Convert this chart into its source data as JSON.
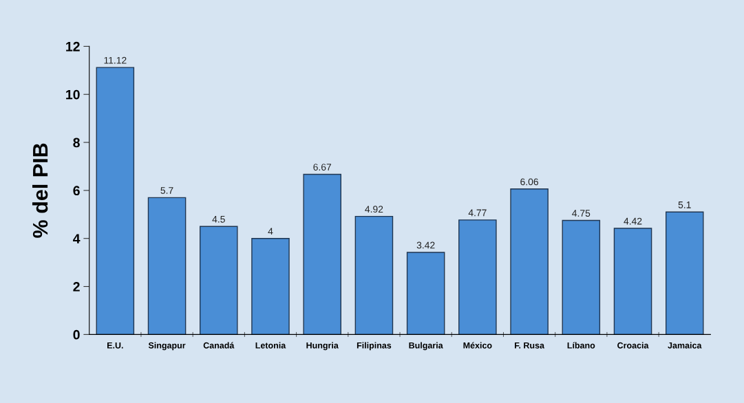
{
  "chart_data": {
    "type": "bar",
    "ylabel": "% del PIB",
    "categories": [
      "E.U.",
      "Singapur",
      "Canadá",
      "Letonia",
      "Hungria",
      "Filipinas",
      "Bulgaria",
      "México",
      "F. Rusa",
      "Líbano",
      "Croacia",
      "Jamaica"
    ],
    "values": [
      11.12,
      5.7,
      4.5,
      4,
      6.67,
      4.92,
      3.42,
      4.77,
      6.06,
      4.75,
      4.42,
      5.1
    ],
    "value_labels": [
      "11.12",
      "5.7",
      "4.5",
      "4",
      "6.67",
      "4.92",
      "3.42",
      "4.77",
      "6.06",
      "4.75",
      "4.42",
      "5.1"
    ],
    "color": "#4a8ed6",
    "ylim": [
      0,
      12
    ],
    "yticks": [
      0,
      2,
      4,
      6,
      8,
      10,
      12
    ],
    "grid": false,
    "legend": false
  }
}
